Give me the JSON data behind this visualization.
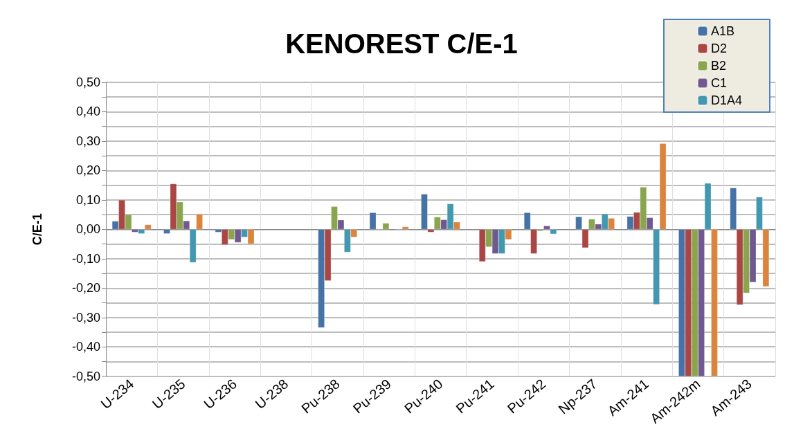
{
  "chart_data": {
    "type": "bar",
    "title": "KENOREST C/E-1",
    "ylabel": "C/E-1",
    "categories": [
      "U-234",
      "U-235",
      "U-236",
      "U-238",
      "Pu-238",
      "Pu-239",
      "Pu-240",
      "Pu-241",
      "Pu-242",
      "Np-237",
      "Am-241",
      "Am-242m",
      "Am-243"
    ],
    "series": [
      {
        "name": "A1B",
        "color": "#4572a7",
        "values": [
          0.028,
          -0.015,
          -0.01,
          null,
          -0.335,
          0.057,
          0.12,
          null,
          0.057,
          0.043,
          0.044,
          -0.5,
          0.141
        ]
      },
      {
        "name": "D2",
        "color": "#aa4643",
        "values": [
          0.1,
          0.155,
          -0.053,
          null,
          -0.175,
          -0.002,
          -0.01,
          -0.11,
          -0.083,
          -0.063,
          0.058,
          -0.5,
          -0.257
        ]
      },
      {
        "name": "B2",
        "color": "#89a54e",
        "values": [
          0.05,
          0.093,
          -0.035,
          null,
          0.078,
          0.021,
          0.042,
          -0.06,
          -0.006,
          0.035,
          0.144,
          -0.5,
          -0.217
        ]
      },
      {
        "name": "C1",
        "color": "#71588f",
        "values": [
          -0.01,
          0.029,
          -0.045,
          null,
          0.032,
          null,
          0.033,
          -0.083,
          0.012,
          0.018,
          0.04,
          -0.5,
          -0.18
        ]
      },
      {
        "name": "D1A4",
        "color": "#4198af",
        "values": [
          -0.015,
          -0.113,
          -0.027,
          null,
          -0.078,
          -0.003,
          0.087,
          -0.083,
          -0.016,
          0.053,
          -0.256,
          0.157,
          0.11
        ]
      },
      {
        "color": "#db843d",
        "values": [
          0.016,
          0.052,
          -0.05,
          null,
          -0.027,
          0.009,
          0.025,
          -0.035,
          null,
          0.038,
          0.292,
          -0.5,
          -0.195
        ]
      }
    ],
    "ylim": [
      -0.5,
      0.5
    ],
    "yticks": [
      {
        "value": -0.5,
        "label": "-0,50"
      },
      {
        "value": -0.45,
        "label": null
      },
      {
        "value": -0.4,
        "label": "-0,40"
      },
      {
        "value": -0.35,
        "label": null
      },
      {
        "value": -0.3,
        "label": "-0,30"
      },
      {
        "value": -0.25,
        "label": null
      },
      {
        "value": -0.2,
        "label": "-0,20"
      },
      {
        "value": -0.15,
        "label": null
      },
      {
        "value": -0.1,
        "label": "-0,10"
      },
      {
        "value": -0.05,
        "label": null
      },
      {
        "value": 0,
        "label": "0,00"
      },
      {
        "value": 0.05,
        "label": null
      },
      {
        "value": 0.1,
        "label": "0,10"
      },
      {
        "value": 0.15,
        "label": null
      },
      {
        "value": 0.2,
        "label": "0,20"
      },
      {
        "value": 0.25,
        "label": null
      },
      {
        "value": 0.3,
        "label": "0,30"
      },
      {
        "value": 0.35,
        "label": null
      },
      {
        "value": 0.4,
        "label": "0,40"
      },
      {
        "value": 0.45,
        "label": null
      },
      {
        "value": 0.5,
        "label": "0,50"
      }
    ],
    "grid": true,
    "legend": "top right"
  }
}
